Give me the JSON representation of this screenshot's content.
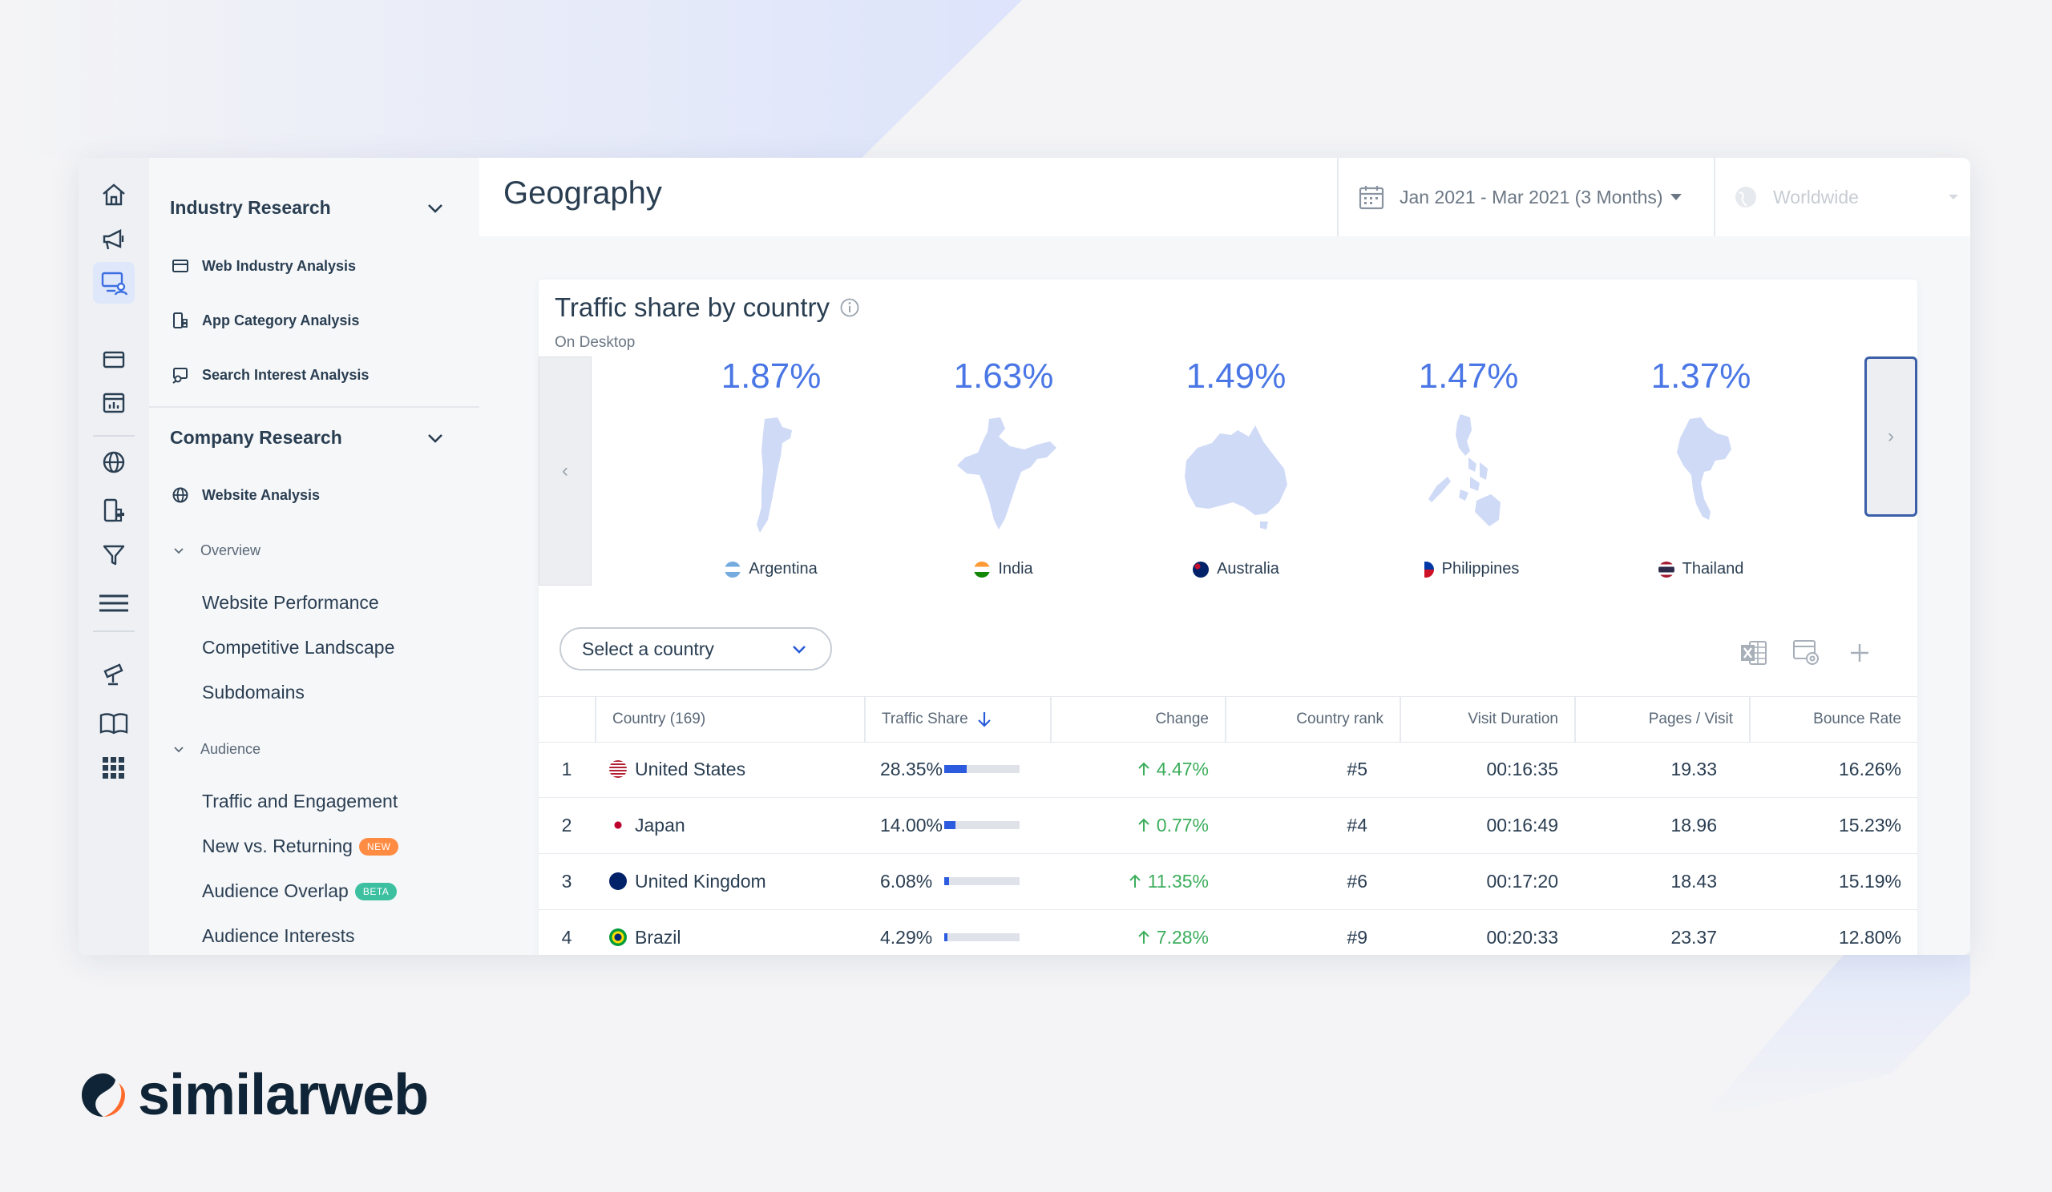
{
  "brand": {
    "name": "similarweb",
    "accent": "#ff6b2c"
  },
  "sidebar": {
    "industry_heading": "Industry Research",
    "industry_items": [
      {
        "label": "Web Industry Analysis",
        "icon": "window-icon"
      },
      {
        "label": "App Category Analysis",
        "icon": "app-grid-icon"
      },
      {
        "label": "Search Interest Analysis",
        "icon": "search-chart-icon"
      }
    ],
    "company_heading": "Company Research",
    "website_analysis": "Website Analysis",
    "overview": "Overview",
    "overview_items": [
      "Website Performance",
      "Competitive Landscape",
      "Subdomains"
    ],
    "audience": "Audience",
    "audience_items": [
      {
        "label": "Traffic and Engagement"
      },
      {
        "label": "New vs. Returning",
        "badge": "NEW",
        "badge_color": "#ff8c42"
      },
      {
        "label": "Audience Overlap",
        "badge": "BETA",
        "badge_color": "#3cc0a0"
      },
      {
        "label": "Audience Interests"
      }
    ]
  },
  "header": {
    "title": "Geography",
    "date_range": "Jan 2021 - Mar 2021 (3 Months)",
    "region": "Worldwide"
  },
  "card": {
    "title": "Traffic share by country",
    "subtitle": "On Desktop",
    "nav_prev": "‹",
    "nav_next": "›",
    "top_countries": [
      {
        "pct": "1.87%",
        "name": "Argentina"
      },
      {
        "pct": "1.63%",
        "name": "India"
      },
      {
        "pct": "1.49%",
        "name": "Australia"
      },
      {
        "pct": "1.47%",
        "name": "Philippines"
      },
      {
        "pct": "1.37%",
        "name": "Thailand"
      }
    ],
    "select_placeholder": "Select a country"
  },
  "table": {
    "columns": [
      "Country (169)",
      "Traffic Share",
      "Change",
      "Country rank",
      "Visit Duration",
      "Pages / Visit",
      "Bounce Rate"
    ],
    "rows": [
      {
        "n": "1",
        "country": "United States",
        "share": "28.35%",
        "share_value": 28.35,
        "change": "4.47%",
        "rank": "#5",
        "duration": "00:16:35",
        "pages": "19.33",
        "bounce": "16.26%"
      },
      {
        "n": "2",
        "country": "Japan",
        "share": "14.00%",
        "share_value": 14.0,
        "change": "0.77%",
        "rank": "#4",
        "duration": "00:16:49",
        "pages": "18.96",
        "bounce": "15.23%"
      },
      {
        "n": "3",
        "country": "United Kingdom",
        "share": "6.08%",
        "share_value": 6.08,
        "change": "11.35%",
        "rank": "#6",
        "duration": "00:17:20",
        "pages": "18.43",
        "bounce": "15.19%"
      },
      {
        "n": "4",
        "country": "Brazil",
        "share": "4.29%",
        "share_value": 4.29,
        "change": "7.28%",
        "rank": "#9",
        "duration": "00:20:33",
        "pages": "23.37",
        "bounce": "12.80%"
      }
    ]
  }
}
